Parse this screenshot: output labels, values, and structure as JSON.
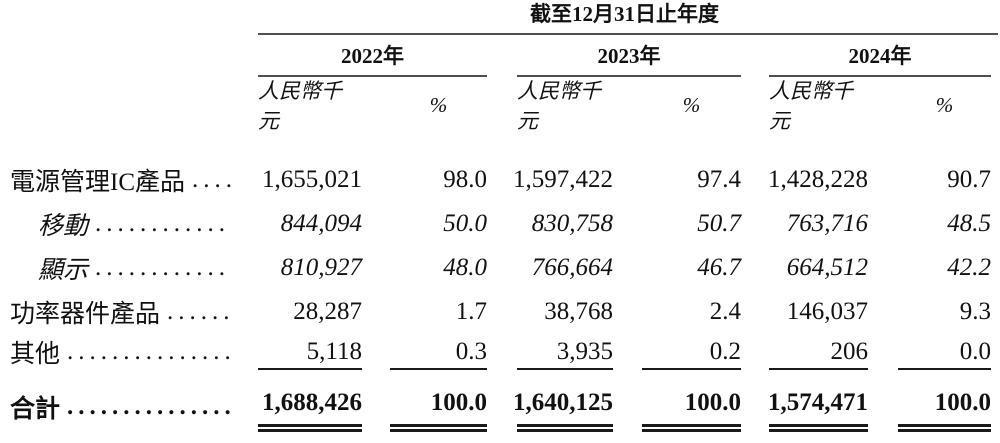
{
  "colors": {
    "background": "#ffffff",
    "text": "#111111",
    "rule_gray": "#4f4f4f",
    "rule_black": "#1a1a1a"
  },
  "table": {
    "title": "截至12月31日止年度",
    "year_headers": [
      "2022年",
      "2023年",
      "2024年"
    ],
    "unit_header": "人民幣千元",
    "percent_header": "%",
    "rows": [
      {
        "label": "電源管理IC產品",
        "leader": ".....",
        "values": [
          "1,655,021",
          "98.0",
          "1,597,422",
          "97.4",
          "1,428,228",
          "90.7"
        ]
      },
      {
        "label": "移動",
        "leader": "............",
        "values": [
          "844,094",
          "50.0",
          "830,758",
          "50.7",
          "763,716",
          "48.5"
        ]
      },
      {
        "label": "顯示",
        "leader": "............",
        "values": [
          "810,927",
          "48.0",
          "766,664",
          "46.7",
          "664,512",
          "42.2"
        ]
      },
      {
        "label": "功率器件產品",
        "leader": ".......",
        "values": [
          "28,287",
          "1.7",
          "38,768",
          "2.4",
          "146,037",
          "9.3"
        ]
      },
      {
        "label": "其他",
        "leader": "...............",
        "values": [
          "5,118",
          "0.3",
          "3,935",
          "0.2",
          "206",
          "0.0"
        ]
      },
      {
        "label": "合計",
        "leader": "...............",
        "values": [
          "1,688,426",
          "100.0",
          "1,640,125",
          "100.0",
          "1,574,471",
          "100.0"
        ]
      }
    ]
  }
}
